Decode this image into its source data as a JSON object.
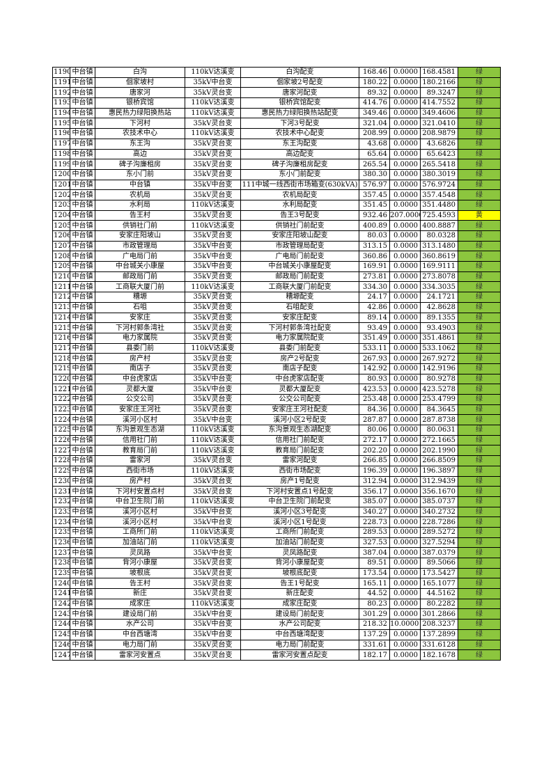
{
  "colors": {
    "绿": "#8cc63e",
    "黄": "#ffff00"
  },
  "rows": [
    [
      "1190",
      "中台镇",
      "白沟",
      "110kV达溪变",
      "白沟配变",
      "168.46",
      "0.0000",
      "168.4581",
      "绿"
    ],
    [
      "1191",
      "中台镇",
      "佪家坡村",
      "35kV中台变",
      "佪家坡2号配变",
      "180.22",
      "0.0000",
      "180.2166",
      "绿"
    ],
    [
      "1192",
      "中台镇",
      "唐家河",
      "35kV灵台变",
      "唐家河配变",
      "89.32",
      "0.0000",
      "89.3247",
      "绿"
    ],
    [
      "1193",
      "中台镇",
      "银桥宾馆",
      "110kV达溪变",
      "银桥宾馆配变",
      "414.76",
      "0.0000",
      "414.7552",
      "绿"
    ],
    [
      "1194",
      "中台镇",
      "惠民热力绿阳换热站",
      "110kV达溪变",
      "惠民热力绿阳换热站配变",
      "349.46",
      "0.0000",
      "349.4606",
      "绿"
    ],
    [
      "1195",
      "中台镇",
      "下河村",
      "35kV灵台变",
      "下河3号配变",
      "321.04",
      "0.0000",
      "321.0410",
      "绿"
    ],
    [
      "1196",
      "中台镇",
      "农技术中心",
      "110kV达溪变",
      "农技术中心配变",
      "208.99",
      "0.0000",
      "208.9879",
      "绿"
    ],
    [
      "1197",
      "中台镇",
      "东王沟",
      "35kV灵台变",
      "东王沟配变",
      "43.68",
      "0.0000",
      "43.6826",
      "绿"
    ],
    [
      "1198",
      "中台镇",
      "高边",
      "35kV灵台变",
      "高边配变",
      "65.64",
      "0.0000",
      "65.6423",
      "绿"
    ],
    [
      "1199",
      "中台镇",
      "碑子沟廉租房",
      "35kV灵台变",
      "碑子沟廉租房配变",
      "265.54",
      "0.0000",
      "265.5418",
      "绿"
    ],
    [
      "1200",
      "中台镇",
      "东小门前",
      "35kV灵台变",
      "东小门前配变",
      "380.30",
      "0.0000",
      "380.3019",
      "绿"
    ],
    [
      "1201",
      "中台镇",
      "中台镇",
      "35kV中台变",
      "111中城一线西街市场箱变(630kVA)",
      "576.97",
      "0.0000",
      "576.9724",
      "绿"
    ],
    [
      "1202",
      "中台镇",
      "农机局",
      "35kV灵台变",
      "农机局配变",
      "357.45",
      "0.0000",
      "357.4548",
      "绿"
    ],
    [
      "1203",
      "中台镇",
      "水利局",
      "110kV达溪变",
      "水利局配变",
      "351.45",
      "0.0000",
      "351.4480",
      "绿"
    ],
    [
      "1204",
      "中台镇",
      "告王村",
      "35kV灵台变",
      "告王3号配变",
      "932.46",
      "207.0000",
      "725.4593",
      "黄"
    ],
    [
      "1205",
      "中台镇",
      "供销社门前",
      "110kV达溪变",
      "供销社门前配变",
      "400.89",
      "0.0000",
      "400.8887",
      "绿"
    ],
    [
      "1206",
      "中台镇",
      "安家庄阳坡山",
      "35kV灵台变",
      "安家庄阳坡山配变",
      "80.03",
      "0.0000",
      "80.0328",
      "绿"
    ],
    [
      "1207",
      "中台镇",
      "市政管理局",
      "35kV中台变",
      "市政管理局配变",
      "313.15",
      "0.0000",
      "313.1480",
      "绿"
    ],
    [
      "1208",
      "中台镇",
      "广电局门前",
      "35kV中台变",
      "广电局门前配变",
      "360.86",
      "0.0000",
      "360.8619",
      "绿"
    ],
    [
      "1209",
      "中台镇",
      "中台城关小康屋",
      "35kV中台变",
      "中台城关小康屋配变",
      "169.91",
      "0.0000",
      "169.9111",
      "绿"
    ],
    [
      "1210",
      "中台镇",
      "邮政局门前",
      "35kV灵台变",
      "邮政局门前配变",
      "273.81",
      "0.0000",
      "273.8078",
      "绿"
    ],
    [
      "1211",
      "中台镇",
      "工商联大厦门前",
      "110kV达溪变",
      "工商联大厦门前配变",
      "334.30",
      "0.0000",
      "334.3035",
      "绿"
    ],
    [
      "1212",
      "中台镇",
      "糟塬",
      "35kV灵台变",
      "糟塬配变",
      "24.17",
      "0.0000",
      "24.1721",
      "绿"
    ],
    [
      "1213",
      "中台镇",
      "石咀",
      "35kV灵台变",
      "石咀配变",
      "42.86",
      "0.0000",
      "42.8628",
      "绿"
    ],
    [
      "1214",
      "中台镇",
      "安家庄",
      "35kV灵台变",
      "安家庄配变",
      "89.14",
      "0.0000",
      "89.1355",
      "绿"
    ],
    [
      "1215",
      "中台镇",
      "下河村郭条湾社",
      "35kV灵台变",
      "下河村郭条湾社配变",
      "93.49",
      "0.0000",
      "93.4903",
      "绿"
    ],
    [
      "1216",
      "中台镇",
      "电力家属院",
      "35kV灵台变",
      "电力家属院配变",
      "351.49",
      "0.0000",
      "351.4861",
      "绿"
    ],
    [
      "1217",
      "中台镇",
      "县委门前",
      "110kV达溪变",
      "县委门前配变",
      "533.11",
      "0.0000",
      "533.1062",
      "绿"
    ],
    [
      "1218",
      "中台镇",
      "房产村",
      "35kV灵台变",
      "房产2号配变",
      "267.93",
      "0.0000",
      "267.9272",
      "绿"
    ],
    [
      "1219",
      "中台镇",
      "南店子",
      "35kV灵台变",
      "南店子配变",
      "142.92",
      "0.0000",
      "142.9196",
      "绿"
    ],
    [
      "1220",
      "中台镇",
      "中台虎家店",
      "35kV中台变",
      "中台虎家店配变",
      "80.93",
      "0.0000",
      "80.9278",
      "绿"
    ],
    [
      "1221",
      "中台镇",
      "灵都大厦",
      "35kV中台变",
      "灵都大厦配变",
      "423.53",
      "0.0000",
      "423.5278",
      "绿"
    ],
    [
      "1222",
      "中台镇",
      "公交公司",
      "35kV灵台变",
      "公交公司配变",
      "253.48",
      "0.0000",
      "253.4799",
      "绿"
    ],
    [
      "1223",
      "中台镇",
      "安家庄王河社",
      "35kV灵台变",
      "安家庄王河社配变",
      "84.36",
      "0.0000",
      "84.3645",
      "绿"
    ],
    [
      "1224",
      "中台镇",
      "溪河小区村",
      "35kV中台变",
      "溪河小区2号配变",
      "287.87",
      "0.0000",
      "287.8738",
      "绿"
    ],
    [
      "1225",
      "中台镇",
      "东沟景观生态湖",
      "110kV达溪变",
      "东沟景观生态湖配变",
      "80.06",
      "0.0000",
      "80.0631",
      "绿"
    ],
    [
      "1226",
      "中台镇",
      "信用社门前",
      "110kV达溪变",
      "信用社门前配变",
      "272.17",
      "0.0000",
      "272.1665",
      "绿"
    ],
    [
      "1227",
      "中台镇",
      "教育局门前",
      "110kV达溪变",
      "教育局门前配变",
      "202.20",
      "0.0000",
      "202.1990",
      "绿"
    ],
    [
      "1228",
      "中台镇",
      "雷家河",
      "35kV灵台变",
      "雷家河配变",
      "266.85",
      "0.0000",
      "266.8509",
      "绿"
    ],
    [
      "1229",
      "中台镇",
      "西街市场",
      "110kV达溪变",
      "西街市场配变",
      "196.39",
      "0.0000",
      "196.3897",
      "绿"
    ],
    [
      "1230",
      "中台镇",
      "房产村",
      "35kV灵台变",
      "房产1号配变",
      "312.94",
      "0.0000",
      "312.9439",
      "绿"
    ],
    [
      "1231",
      "中台镇",
      "下河村安置点村",
      "35kV灵台变",
      "下河村安置点1号配变",
      "356.17",
      "0.0000",
      "356.1670",
      "绿"
    ],
    [
      "1232",
      "中台镇",
      "中台卫生院门前",
      "110kV达溪变",
      "中台卫生院门前配变",
      "385.07",
      "0.0000",
      "385.0737",
      "绿"
    ],
    [
      "1233",
      "中台镇",
      "溪河小区村",
      "35kV中台变",
      "溪河小区3号配变",
      "340.27",
      "0.0000",
      "340.2732",
      "绿"
    ],
    [
      "1234",
      "中台镇",
      "溪河小区村",
      "35kV中台变",
      "溪河小区1号配变",
      "228.73",
      "0.0000",
      "228.7286",
      "绿"
    ],
    [
      "1235",
      "中台镇",
      "工商所门前",
      "110kV达溪变",
      "工商所门前配变",
      "289.53",
      "0.0000",
      "289.5272",
      "绿"
    ],
    [
      "1236",
      "中台镇",
      "加油站门前",
      "110kV达溪变",
      "加油站门前配变",
      "327.53",
      "0.0000",
      "327.5294",
      "绿"
    ],
    [
      "1237",
      "中台镇",
      "灵凤路",
      "35kV中台变",
      "灵凤路配变",
      "387.04",
      "0.0000",
      "387.0379",
      "绿"
    ],
    [
      "1238",
      "中台镇",
      "背河小康屋",
      "35kV灵台变",
      "背河小康屋配变",
      "89.51",
      "0.0000",
      "89.5066",
      "绿"
    ],
    [
      "1239",
      "中台镇",
      "坡根底",
      "35kV灵台变",
      "坡根底配变",
      "173.54",
      "0.0000",
      "173.5427",
      "绿"
    ],
    [
      "1240",
      "中台镇",
      "告王村",
      "35kV灵台变",
      "告王1号配变",
      "165.11",
      "0.0000",
      "165.1077",
      "绿"
    ],
    [
      "1241",
      "中台镇",
      "新庄",
      "35kV灵台变",
      "新庄配变",
      "44.52",
      "0.0000",
      "44.5162",
      "绿"
    ],
    [
      "1242",
      "中台镇",
      "成家庄",
      "110kV达溪变",
      "成家庄配变",
      "80.23",
      "0.0000",
      "80.2282",
      "绿"
    ],
    [
      "1243",
      "中台镇",
      "建设局门前",
      "35kV中台变",
      "建设局门前配变",
      "301.29",
      "0.0000",
      "301.2866",
      "绿"
    ],
    [
      "1244",
      "中台镇",
      "水产公司",
      "35kV中台变",
      "水产公司配变",
      "218.32",
      "10.0000",
      "208.3237",
      "绿"
    ],
    [
      "1245",
      "中台镇",
      "中台西塘湾",
      "35kV中台变",
      "中台西塘湾配变",
      "137.29",
      "0.0000",
      "137.2899",
      "绿"
    ],
    [
      "1246",
      "中台镇",
      "电力局门前",
      "35kV灵台变",
      "电力局门前配变",
      "331.61",
      "0.0000",
      "331.6128",
      "绿"
    ],
    [
      "1247",
      "中台镇",
      "雷家河安置点",
      "35kV灵台变",
      "雷家河安置点配变",
      "182.17",
      "0.0000",
      "182.1678",
      "绿"
    ]
  ]
}
